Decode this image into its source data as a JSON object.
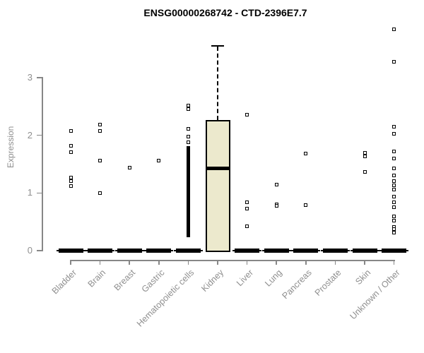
{
  "chart_data": {
    "type": "boxplot",
    "title": "ENSG00000268742 - CTD-2396E7.7",
    "ylabel": "Expression",
    "xlabel": "",
    "yticks": [
      0,
      1,
      2,
      3
    ],
    "ylim": [
      0,
      3.9
    ],
    "grid": false,
    "legend": "none",
    "categories": [
      "Bladder",
      "Brain",
      "Breast",
      "Gastric",
      "Hematopoietic cells",
      "Kidney",
      "Liver",
      "Lung",
      "Pancreas",
      "Prostate",
      "Skin",
      "Unknown / Other"
    ],
    "boxes": [
      {
        "category": "Bladder",
        "q1": 0,
        "median": 0,
        "q3": 0,
        "whisker_low": 0,
        "whisker_high": 0
      },
      {
        "category": "Brain",
        "q1": 0,
        "median": 0,
        "q3": 0,
        "whisker_low": 0,
        "whisker_high": 0
      },
      {
        "category": "Breast",
        "q1": 0,
        "median": 0,
        "q3": 0,
        "whisker_low": 0,
        "whisker_high": 0
      },
      {
        "category": "Gastric",
        "q1": 0,
        "median": 0,
        "q3": 0,
        "whisker_low": 0,
        "whisker_high": 0
      },
      {
        "category": "Hematopoietic cells",
        "q1": 0,
        "median": 0,
        "q3": 0,
        "whisker_low": 0,
        "whisker_high": 0
      },
      {
        "category": "Kidney",
        "q1": 0,
        "median": 1.43,
        "q3": 2.26,
        "whisker_low": 0,
        "whisker_high": 3.55
      },
      {
        "category": "Liver",
        "q1": 0,
        "median": 0,
        "q3": 0,
        "whisker_low": 0,
        "whisker_high": 0
      },
      {
        "category": "Lung",
        "q1": 0,
        "median": 0,
        "q3": 0,
        "whisker_low": 0,
        "whisker_high": 0
      },
      {
        "category": "Pancreas",
        "q1": 0,
        "median": 0,
        "q3": 0,
        "whisker_low": 0,
        "whisker_high": 0
      },
      {
        "category": "Prostate",
        "q1": 0,
        "median": 0,
        "q3": 0,
        "whisker_low": 0,
        "whisker_high": 0
      },
      {
        "category": "Skin",
        "q1": 0,
        "median": 0,
        "q3": 0,
        "whisker_low": 0,
        "whisker_high": 0
      },
      {
        "category": "Unknown / Other",
        "q1": 0,
        "median": 0,
        "q3": 0,
        "whisker_low": 0,
        "whisker_high": 0
      }
    ],
    "points": {
      "Bladder": [
        2.07,
        1.82,
        1.71,
        1.27,
        1.2,
        1.12
      ],
      "Brain": [
        2.18,
        2.08,
        1.56,
        1.0
      ],
      "Breast": [
        1.44
      ],
      "Gastric": [
        1.56
      ],
      "Hematopoietic cells": [
        2.52,
        2.46,
        2.11,
        1.98,
        1.88
      ],
      "Kidney": [],
      "Liver": [
        2.36,
        0.84,
        0.73,
        0.42
      ],
      "Lung": [
        1.15,
        0.8,
        0.78
      ],
      "Pancreas": [
        1.68,
        0.79
      ],
      "Prostate": [],
      "Skin": [
        1.7,
        1.64,
        1.36
      ],
      "Unknown / Other": [
        3.84,
        3.28,
        2.15,
        2.03,
        1.72,
        1.6,
        1.43,
        1.3,
        1.21,
        1.13,
        1.06,
        0.94,
        0.84,
        0.75,
        0.59,
        0.52,
        0.41,
        0.37,
        0.31
      ]
    },
    "dense_band": {
      "category": "Hematopoietic cells",
      "min": 0.23,
      "max": 1.81
    },
    "colors": {
      "box_fill": "#ece9cd",
      "box_border": "#000000",
      "point": "#000000",
      "axis": "#878787",
      "text": "#8f8f8f",
      "title": "#000000",
      "background": "#ffffff"
    }
  }
}
